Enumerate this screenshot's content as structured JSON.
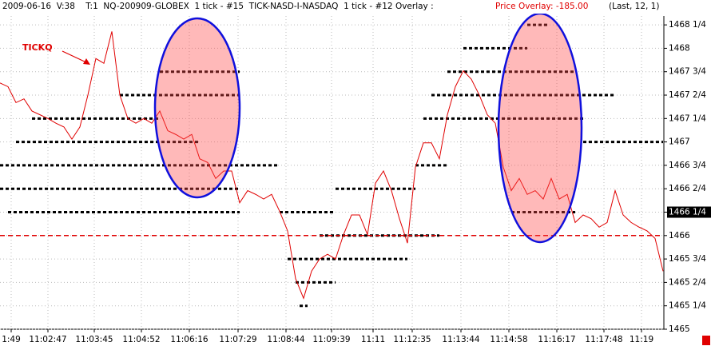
{
  "chart_data": {
    "type": "line",
    "title": "2009-06-16  V:38    T:1  NQ-200909-GLOBEX  1 tick - #15  TICK-NASD-I-NASDAQ  1 tick - #12 Overlay :",
    "overlay_note": "Price Overlay: -185.00",
    "params": "(Last, 12, 1)",
    "annotation": "TICKQ",
    "color": "#e00000",
    "values": [
      1467.63,
      1467.59,
      1467.42,
      1467.46,
      1467.33,
      1467.29,
      1467.25,
      1467.2,
      1467.16,
      1467.03,
      1467.16,
      1467.5,
      1467.89,
      1467.84,
      1468.18,
      1467.5,
      1467.25,
      1467.2,
      1467.25,
      1467.2,
      1467.33,
      1467.12,
      1467.08,
      1467.03,
      1467.08,
      1466.82,
      1466.78,
      1466.61,
      1466.69,
      1466.69,
      1466.35,
      1466.48,
      1466.44,
      1466.39,
      1466.44,
      1466.26,
      1466.05,
      1465.54,
      1465.33,
      1465.62,
      1465.75,
      1465.8,
      1465.75,
      1466.01,
      1466.22,
      1466.22,
      1466.01,
      1466.56,
      1466.69,
      1466.48,
      1466.18,
      1465.92,
      1466.73,
      1466.99,
      1466.99,
      1466.82,
      1467.29,
      1467.59,
      1467.76,
      1467.67,
      1467.5,
      1467.29,
      1467.2,
      1466.73,
      1466.48,
      1466.61,
      1466.44,
      1466.48,
      1466.39,
      1466.61,
      1466.39,
      1466.44,
      1466.14,
      1466.22,
      1466.18,
      1466.09,
      1466.14,
      1466.48,
      1466.22,
      1466.14,
      1466.09,
      1466.05,
      1465.97,
      1465.62
    ],
    "overlay": {
      "color": "#000000",
      "rows": [
        {
          "level": 1468.25,
          "from": 66,
          "to": 68.5
        },
        {
          "level": 1468,
          "from": 58,
          "to": 66
        },
        {
          "level": 1467.75,
          "from": 20,
          "to": 30
        },
        {
          "level": 1467.75,
          "from": 56,
          "to": 72
        },
        {
          "level": 1467.5,
          "from": 15,
          "to": 30
        },
        {
          "level": 1467.5,
          "from": 54,
          "to": 77
        },
        {
          "level": 1467.25,
          "from": 4,
          "to": 20
        },
        {
          "level": 1467.25,
          "from": 53,
          "to": 73
        },
        {
          "level": 1467,
          "from": 2,
          "to": 25
        },
        {
          "level": 1467,
          "from": 73,
          "to": 83
        },
        {
          "level": 1466.75,
          "from": 0,
          "to": 35
        },
        {
          "level": 1466.75,
          "from": 52,
          "to": 56
        },
        {
          "level": 1466.5,
          "from": 0,
          "to": 30
        },
        {
          "level": 1466.5,
          "from": 42,
          "to": 52
        },
        {
          "level": 1466.25,
          "from": 1,
          "to": 30
        },
        {
          "level": 1466.25,
          "from": 35,
          "to": 42
        },
        {
          "level": 1466.25,
          "from": 64,
          "to": 72
        },
        {
          "level": 1466,
          "from": 40,
          "to": 55
        },
        {
          "level": 1465.75,
          "from": 36,
          "to": 51
        },
        {
          "level": 1465.5,
          "from": 37,
          "to": 42
        },
        {
          "level": 1465.25,
          "from": 37.5,
          "to": 38.5
        }
      ]
    },
    "reference_line": 1466,
    "last_price": 1466.25,
    "xlim": [
      0,
      83
    ],
    "xticks": [
      {
        "value": 1.4,
        "label": "1:49"
      },
      {
        "value": 6,
        "label": "11:02:47"
      },
      {
        "value": 11.8,
        "label": "11:03:45"
      },
      {
        "value": 17.7,
        "label": "11:04:52"
      },
      {
        "value": 23.7,
        "label": "11:06:16"
      },
      {
        "value": 29.8,
        "label": "11:07:29"
      },
      {
        "value": 35.8,
        "label": "11:08:44"
      },
      {
        "value": 41.5,
        "label": "11:09:39"
      },
      {
        "value": 46.7,
        "label": "11:11"
      },
      {
        "value": 51.6,
        "label": "11:12:35"
      },
      {
        "value": 57.7,
        "label": "11:13:44"
      },
      {
        "value": 63.7,
        "label": "11:14:58"
      },
      {
        "value": 69.7,
        "label": "11:16:17"
      },
      {
        "value": 75.6,
        "label": "11:17:48"
      },
      {
        "value": 80.3,
        "label": "11:19"
      }
    ],
    "ylim": [
      1465,
      1468.345
    ],
    "yticks": [
      {
        "value": 1468.25,
        "label": "1468 1/4"
      },
      1468,
      {
        "value": 1467.75,
        "label": "1467 3/4"
      },
      {
        "value": 1467.5,
        "label": "1467 2/4"
      },
      {
        "value": 1467.25,
        "label": "1467 1/4"
      },
      1467,
      {
        "value": 1466.75,
        "label": "1466 3/4"
      },
      {
        "value": 1466.5,
        "label": "1466 2/4"
      },
      {
        "value": 1466.25,
        "label": "1466 1/4"
      },
      1466,
      {
        "value": 1465.75,
        "label": "1465 3/4"
      },
      {
        "value": 1465.5,
        "label": "1465 2/4"
      },
      {
        "value": 1465.25,
        "label": "1465 1/4"
      },
      1465
    ],
    "grid": true
  }
}
